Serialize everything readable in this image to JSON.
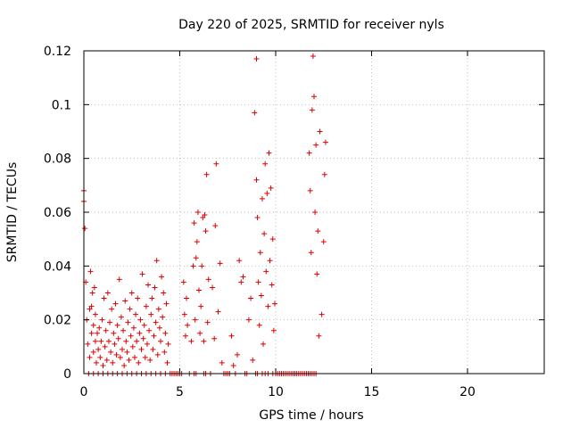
{
  "chart_data": {
    "type": "scatter",
    "title": "Day 220 of 2025, SRMTID for receiver nyls",
    "xlabel": "GPS time / hours",
    "ylabel": "SRMTID / TECUs",
    "xlim": [
      0,
      24
    ],
    "ylim": [
      0,
      0.12
    ],
    "xticks": [
      0,
      5,
      10,
      15,
      20
    ],
    "xtick_labels": [
      "0",
      "5",
      "10",
      "15",
      "20"
    ],
    "yticks": [
      0,
      0.02,
      0.04,
      0.06,
      0.08,
      0.1,
      0.12
    ],
    "ytick_labels": [
      "0",
      "0.02",
      "0.04",
      "0.06",
      "0.08",
      "0.1",
      "0.12"
    ],
    "grid": true,
    "marker": "+",
    "color": "#dd0000",
    "series": [
      {
        "name": "SRMTID",
        "x": [
          0.0,
          0.0,
          0.05,
          0.1,
          0.15,
          0.2,
          0.3,
          0.3,
          0.35,
          0.4,
          0.4,
          0.45,
          0.5,
          0.5,
          0.55,
          0.6,
          0.6,
          0.65,
          0.7,
          0.75,
          0.8,
          0.85,
          0.9,
          0.95,
          1.0,
          1.05,
          1.1,
          1.15,
          1.2,
          1.25,
          1.3,
          1.35,
          1.4,
          1.45,
          1.5,
          1.55,
          1.6,
          1.65,
          1.7,
          1.75,
          1.8,
          1.85,
          1.9,
          1.95,
          2.0,
          2.05,
          2.1,
          2.15,
          2.2,
          2.25,
          2.3,
          2.35,
          2.4,
          2.45,
          2.5,
          2.55,
          2.6,
          2.65,
          2.7,
          2.75,
          2.8,
          2.85,
          2.9,
          2.95,
          3.0,
          3.05,
          3.1,
          3.15,
          3.2,
          3.25,
          3.3,
          3.35,
          3.4,
          3.45,
          3.5,
          3.55,
          3.6,
          3.65,
          3.7,
          3.75,
          3.8,
          3.85,
          3.9,
          3.95,
          4.0,
          4.05,
          4.1,
          4.15,
          4.2,
          4.25,
          4.3,
          4.35,
          4.4,
          4.5,
          4.6,
          4.7,
          4.8,
          4.9,
          5.0,
          5.1,
          5.2,
          5.25,
          5.3,
          5.35,
          5.4,
          5.5,
          5.6,
          5.7,
          5.75,
          5.8,
          5.85,
          5.9,
          5.95,
          6.0,
          6.05,
          6.1,
          6.15,
          6.2,
          6.25,
          6.3,
          6.35,
          6.4,
          6.45,
          6.5,
          6.6,
          6.7,
          6.8,
          6.85,
          6.9,
          7.0,
          7.1,
          7.2,
          7.3,
          7.4,
          7.5,
          7.6,
          7.7,
          7.8,
          7.9,
          8.0,
          8.1,
          8.2,
          8.3,
          8.4,
          8.5,
          8.6,
          8.7,
          8.8,
          8.9,
          9.0,
          9.0,
          9.05,
          9.1,
          9.15,
          9.2,
          9.25,
          9.3,
          9.35,
          9.4,
          9.45,
          9.5,
          9.55,
          9.6,
          9.65,
          9.7,
          9.75,
          9.8,
          9.85,
          9.9,
          9.95,
          10.0,
          10.1,
          10.2,
          10.3,
          10.4,
          10.5,
          10.6,
          10.7,
          10.8,
          10.9,
          11.0,
          11.1,
          11.2,
          11.3,
          11.4,
          11.5,
          11.6,
          11.7,
          11.75,
          11.8,
          11.85,
          11.9,
          11.95,
          12.0,
          12.05,
          12.1,
          12.15,
          12.2,
          12.25,
          12.3,
          12.4,
          12.5,
          12.55,
          12.6,
          0.25,
          0.5,
          0.75,
          1.0,
          1.25,
          1.5,
          1.75,
          2.0,
          2.25,
          2.5,
          2.75,
          3.0,
          3.25,
          3.5,
          3.75,
          4.0,
          4.25,
          5.75,
          5.85,
          6.25,
          6.35,
          8.95,
          9.05,
          9.3,
          9.45,
          9.6,
          9.85,
          11.8,
          11.9,
          12.0,
          12.1
        ],
        "y": [
          0.068,
          0.064,
          0.054,
          0.034,
          0.02,
          0.011,
          0.024,
          0.006,
          0.038,
          0.015,
          0.025,
          0.03,
          0.008,
          0.018,
          0.032,
          0.012,
          0.022,
          0.004,
          0.015,
          0.009,
          0.017,
          0.006,
          0.012,
          0.02,
          0.003,
          0.028,
          0.01,
          0.016,
          0.005,
          0.03,
          0.012,
          0.019,
          0.008,
          0.024,
          0.004,
          0.015,
          0.011,
          0.026,
          0.007,
          0.018,
          0.013,
          0.035,
          0.006,
          0.021,
          0.009,
          0.016,
          0.003,
          0.027,
          0.012,
          0.008,
          0.019,
          0.005,
          0.024,
          0.014,
          0.03,
          0.01,
          0.017,
          0.006,
          0.022,
          0.012,
          0.028,
          0.004,
          0.015,
          0.02,
          0.009,
          0.037,
          0.013,
          0.018,
          0.006,
          0.025,
          0.011,
          0.033,
          0.016,
          0.005,
          0.022,
          0.028,
          0.009,
          0.014,
          0.032,
          0.019,
          0.042,
          0.007,
          0.024,
          0.017,
          0.012,
          0.036,
          0.021,
          0.03,
          0.008,
          0.015,
          0.026,
          0.004,
          0.011,
          0.0,
          0.0,
          0.0,
          0.0,
          0.0,
          0.0,
          0.0,
          0.034,
          0.022,
          0.014,
          0.028,
          0.018,
          0.0,
          0.012,
          0.04,
          0.056,
          0.02,
          0.043,
          0.049,
          0.06,
          0.031,
          0.015,
          0.025,
          0.04,
          0.058,
          0.012,
          0.059,
          0.053,
          0.074,
          0.019,
          0.035,
          0.0,
          0.032,
          0.013,
          0.055,
          0.078,
          0.023,
          0.041,
          0.004,
          0.0,
          0.0,
          0.0,
          0.0,
          0.014,
          0.003,
          0.0,
          0.007,
          0.042,
          0.034,
          0.036,
          0.0,
          0.0,
          0.02,
          0.028,
          0.005,
          0.097,
          0.117,
          0.072,
          0.058,
          0.034,
          0.018,
          0.045,
          0.029,
          0.065,
          0.011,
          0.052,
          0.078,
          0.038,
          0.067,
          0.025,
          0.082,
          0.042,
          0.069,
          0.033,
          0.05,
          0.016,
          0.026,
          0.0,
          0.0,
          0.0,
          0.0,
          0.0,
          0.0,
          0.0,
          0.0,
          0.0,
          0.0,
          0.0,
          0.0,
          0.0,
          0.0,
          0.0,
          0.0,
          0.0,
          0.0,
          0.082,
          0.068,
          0.045,
          0.098,
          0.118,
          0.103,
          0.06,
          0.085,
          0.037,
          0.053,
          0.014,
          0.09,
          0.022,
          0.049,
          0.074,
          0.086,
          0.0,
          0.0,
          0.0,
          0.0,
          0.0,
          0.0,
          0.0,
          0.0,
          0.0,
          0.0,
          0.0,
          0.0,
          0.0,
          0.0,
          0.0,
          0.0,
          0.0,
          0.0,
          0.0,
          0.0,
          0.0,
          0.0,
          0.0,
          0.0,
          0.0,
          0.0,
          0.0,
          0.0,
          0.0,
          0.0,
          0.0
        ]
      }
    ]
  }
}
